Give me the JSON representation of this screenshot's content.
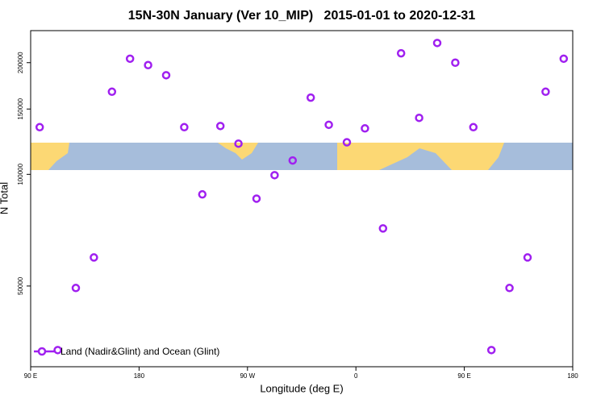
{
  "chart_data": {
    "type": "scatter",
    "title": "15N-30N January (Ver 10_MIP)   2015-01-01 to 2020-12-31",
    "x_label": "Longitude (deg E)",
    "y_label": "N Total",
    "series": [
      {
        "name": "Land (Nadir&Glint) and Ocean (Glint)",
        "color": "#a020f0",
        "x": [
          97.5,
          112.5,
          127.5,
          142.5,
          157.5,
          172.5,
          187.5,
          202.5,
          217.5,
          232.5,
          247.5,
          262.5,
          277.5,
          292.5,
          307.5,
          322.5,
          337.5,
          352.5,
          367.5,
          382.5,
          397.5,
          412.5,
          427.5,
          442.5,
          457.5,
          472.5,
          487.5,
          502.5,
          517.5,
          532.5
        ],
        "values": [
          134000,
          33600,
          49400,
          59700,
          167000,
          205000,
          197000,
          185000,
          134000,
          88300,
          135000,
          121000,
          86000,
          99500,
          109000,
          161000,
          136000,
          122000,
          133000,
          71500,
          212000,
          142000,
          226000,
          200000,
          134000,
          33600,
          49400,
          59700,
          167000,
          205000
        ]
      }
    ],
    "xlim": [
      90,
      540
    ],
    "xticks": [
      {
        "value": 90,
        "label": "90 E"
      },
      180,
      {
        "value": 270,
        "label": "90 W"
      },
      {
        "value": 360,
        "label": "0"
      },
      {
        "value": 450,
        "label": "90 E"
      },
      {
        "value": 540,
        "label": "180"
      }
    ],
    "ylim": [
      30300,
      244000
    ],
    "yticks": [
      50000,
      100000,
      150000,
      200000
    ],
    "log_y": true,
    "grid": false,
    "legend": "bottomleft"
  }
}
